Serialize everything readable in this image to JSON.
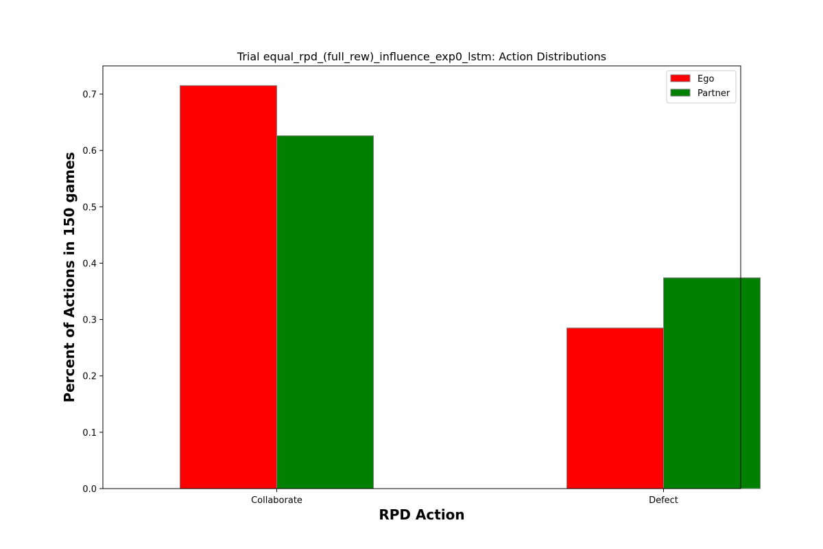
{
  "chart_data": {
    "type": "bar",
    "title": "Trial equal_rpd_(full_rew)_influence_exp0_lstm: Action Distributions",
    "xlabel": "RPD Action",
    "ylabel": "Percent of Actions in 150 games",
    "categories": [
      "Collaborate",
      "Defect"
    ],
    "series": [
      {
        "name": "Ego",
        "color": "#ff0000",
        "values": [
          0.715,
          0.285
        ]
      },
      {
        "name": "Partner",
        "color": "#008000",
        "values": [
          0.626,
          0.374
        ]
      }
    ],
    "ylim": [
      0,
      0.75
    ],
    "yticks": [
      "0.0",
      "0.1",
      "0.2",
      "0.3",
      "0.4",
      "0.5",
      "0.6",
      "0.7"
    ],
    "grid": false,
    "legend_position": "top-right",
    "bar_edge_color": "#808080"
  }
}
